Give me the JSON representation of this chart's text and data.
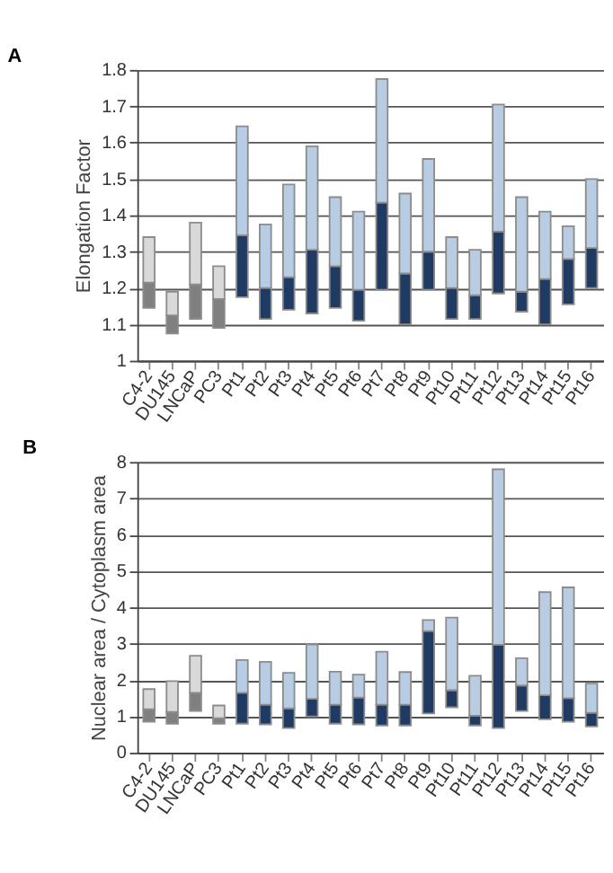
{
  "chart_data": [
    {
      "type": "bar",
      "title": "A",
      "ylabel": "Elongation Factor",
      "grid": "y",
      "categories": [
        "C4-2",
        "DU145",
        "LNCaP",
        "PC3",
        "Pt1",
        "Pt2",
        "Pt3",
        "Pt4",
        "Pt5",
        "Pt6",
        "Pt7",
        "Pt8",
        "Pt9",
        "Pt10",
        "Pt11",
        "Pt12",
        "Pt13",
        "Pt14",
        "Pt15",
        "Pt16"
      ],
      "series": [
        {
          "colors": [
            "#808080",
            "#808080",
            "#808080",
            "#808080",
            "#1f3a63",
            "#1f3a63",
            "#1f3a63",
            "#1f3a63",
            "#1f3a63",
            "#1f3a63",
            "#1f3a63",
            "#1f3a63",
            "#1f3a63",
            "#1f3a63",
            "#1f3a63",
            "#1f3a63",
            "#1f3a63",
            "#1f3a63",
            "#1f3a63",
            "#1f3a63"
          ],
          "base": [
            1.145,
            1.075,
            1.115,
            1.09,
            1.175,
            1.115,
            1.14,
            1.13,
            1.145,
            1.11,
            1.195,
            1.1,
            1.195,
            1.115,
            1.115,
            1.185,
            1.135,
            1.1,
            1.155,
            1.2
          ],
          "values": [
            0.07,
            0.05,
            0.095,
            0.08,
            0.17,
            0.085,
            0.09,
            0.175,
            0.115,
            0.085,
            0.24,
            0.14,
            0.105,
            0.085,
            0.065,
            0.17,
            0.055,
            0.125,
            0.125,
            0.11
          ]
        },
        {
          "colors": [
            "#d9d9d9",
            "#d9d9d9",
            "#d9d9d9",
            "#d9d9d9",
            "#b8cce4",
            "#b8cce4",
            "#b8cce4",
            "#b8cce4",
            "#b8cce4",
            "#b8cce4",
            "#b8cce4",
            "#b8cce4",
            "#b8cce4",
            "#b8cce4",
            "#b8cce4",
            "#b8cce4",
            "#b8cce4",
            "#b8cce4",
            "#b8cce4",
            "#b8cce4"
          ],
          "base": [
            1.215,
            1.125,
            1.21,
            1.17,
            1.345,
            1.2,
            1.23,
            1.305,
            1.26,
            1.195,
            1.435,
            1.24,
            1.3,
            1.2,
            1.18,
            1.355,
            1.19,
            1.225,
            1.28,
            1.31
          ],
          "values": [
            0.125,
            0.065,
            0.17,
            0.09,
            0.3,
            0.175,
            0.255,
            0.285,
            0.19,
            0.215,
            0.34,
            0.22,
            0.255,
            0.14,
            0.125,
            0.35,
            0.26,
            0.185,
            0.09,
            0.19
          ]
        }
      ],
      "ylim": [
        1,
        1.8
      ],
      "yticks": [
        1,
        1.1,
        1.2,
        1.3,
        1.4,
        1.5,
        1.6,
        1.7,
        1.8
      ]
    },
    {
      "type": "bar",
      "title": "B",
      "ylabel": "Nuclear area / Cytoplasm area",
      "grid": "y",
      "categories": [
        "C4-2",
        "DU145",
        "LNCaP",
        "PC3",
        "Pt1",
        "Pt2",
        "Pt3",
        "Pt4",
        "Pt5",
        "Pt6",
        "Pt7",
        "Pt8",
        "Pt9",
        "Pt10",
        "Pt11",
        "Pt12",
        "Pt13",
        "Pt14",
        "Pt15",
        "Pt16"
      ],
      "series": [
        {
          "colors": [
            "#808080",
            "#808080",
            "#808080",
            "#808080",
            "#1f3a63",
            "#1f3a63",
            "#1f3a63",
            "#1f3a63",
            "#1f3a63",
            "#1f3a63",
            "#1f3a63",
            "#1f3a63",
            "#1f3a63",
            "#1f3a63",
            "#1f3a63",
            "#1f3a63",
            "#1f3a63",
            "#1f3a63",
            "#1f3a63",
            "#1f3a63"
          ],
          "base": [
            0.85,
            0.8,
            1.15,
            0.8,
            0.8,
            0.78,
            0.68,
            1.0,
            0.8,
            0.78,
            0.75,
            0.75,
            1.08,
            1.25,
            0.75,
            0.68,
            1.15,
            0.92,
            0.85,
            0.72
          ],
          "values": [
            0.35,
            0.32,
            0.5,
            0.15,
            0.85,
            0.54,
            0.54,
            0.48,
            0.52,
            0.74,
            0.57,
            0.57,
            2.27,
            0.47,
            0.27,
            2.29,
            0.7,
            0.66,
            0.65,
            0.38
          ]
        },
        {
          "colors": [
            "#d9d9d9",
            "#d9d9d9",
            "#d9d9d9",
            "#d9d9d9",
            "#b8cce4",
            "#b8cce4",
            "#b8cce4",
            "#b8cce4",
            "#b8cce4",
            "#b8cce4",
            "#b8cce4",
            "#b8cce4",
            "#b8cce4",
            "#b8cce4",
            "#b8cce4",
            "#b8cce4",
            "#b8cce4",
            "#b8cce4",
            "#b8cce4",
            "#b8cce4"
          ],
          "base": [
            1.2,
            1.12,
            1.65,
            0.95,
            1.65,
            1.32,
            1.22,
            1.48,
            1.32,
            1.52,
            1.32,
            1.32,
            3.35,
            1.72,
            1.02,
            2.97,
            1.85,
            1.58,
            1.5,
            1.1
          ],
          "values": [
            0.55,
            0.85,
            1.02,
            0.35,
            0.9,
            1.18,
            0.98,
            1.5,
            0.91,
            0.63,
            1.46,
            0.9,
            0.3,
            2.0,
            1.1,
            4.83,
            0.75,
            2.84,
            3.05,
            0.8
          ]
        }
      ],
      "ylim": [
        0,
        8
      ],
      "yticks": [
        0,
        1,
        2,
        3,
        4,
        5,
        6,
        7,
        8
      ]
    }
  ]
}
